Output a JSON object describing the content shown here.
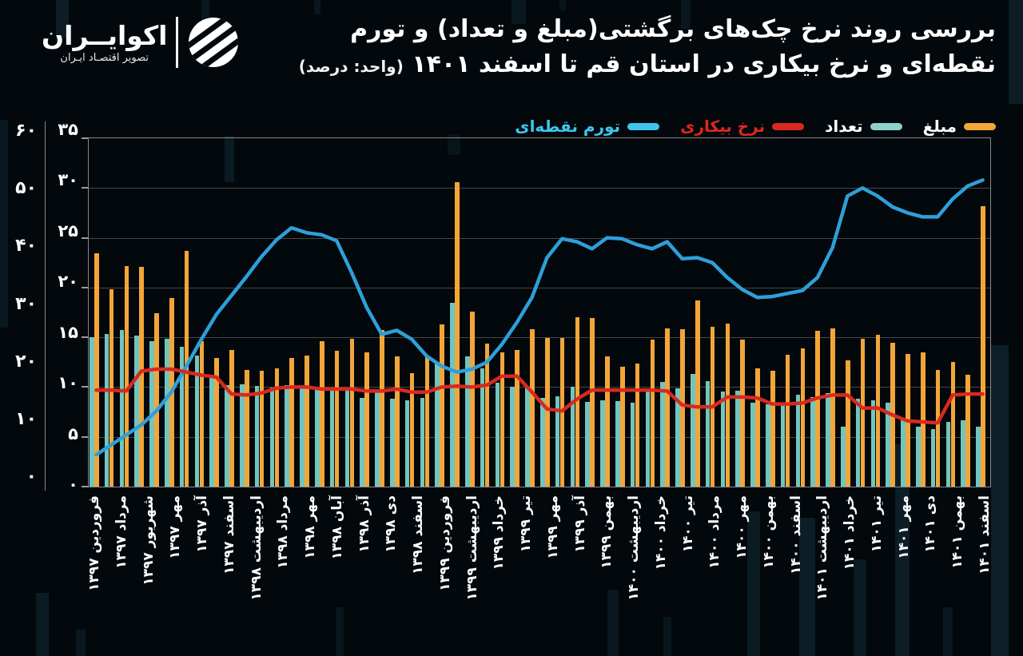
{
  "header": {
    "logo_name": "اکوایــران",
    "logo_tagline": "تصویر اقتصـاد ایـران",
    "title_line1": "بررسی روند نرخ چک‌های برگشتی(مبلغ و تعداد) و تورم",
    "title_line2": "نقطه‌ای و نرخ بیکاری در استان قم تا اسفند ۱۴۰۱",
    "title_unit": "(واحد: درصد)"
  },
  "legend": [
    {
      "label": "مبلغ",
      "swatch_color": "#F2A63A",
      "text_color": "#ffffff"
    },
    {
      "label": "تعداد",
      "swatch_color": "#8ED1CC",
      "text_color": "#ffffff"
    },
    {
      "label": "نرخ بیکاری",
      "swatch_color": "#D9291F",
      "text_color": "#E0271C"
    },
    {
      "label": "تورم نقطه‌ای",
      "swatch_color": "#3EC6EC",
      "text_color": "#3EC6EC"
    }
  ],
  "chart_data": {
    "type": "combo-bar-line",
    "n_points": 60,
    "grid": true,
    "legend_position": "top-right",
    "y_axis_bars": {
      "side": "outer-left",
      "min": 0,
      "max": 60,
      "tick_labels": [
        "۶۰",
        "۵۰",
        "۴۰",
        "۳۰",
        "۲۰",
        "۱۰",
        "۰"
      ]
    },
    "y_axis_lines": {
      "side": "inner-left",
      "min": 0,
      "max": 35,
      "tick_labels": [
        "۳۵",
        "۳۰",
        "۲۵",
        "۲۰",
        "۱۵",
        "۱۰",
        "۵",
        "۰"
      ]
    },
    "x_tick_labels": [
      "فروردین ۱۳۹۷",
      "مرداد ۱۳۹۷",
      "شهریور ۱۳۹۷",
      "مهر ۱۳۹۷",
      "آذر ۱۳۹۷",
      "اسفند ۱۳۹۷",
      "اردیبهشت ۱۳۹۸",
      "مرداد ۱۳۹۸",
      "مهر ۱۳۹۸",
      "آبان ۱۳۹۸",
      "آذر ۱۳۹۸",
      "دی ۱۳۹۸",
      "اسفند ۱۳۹۸",
      "فروردین ۱۳۹۹",
      "اردیبهشت ۱۳۹۹",
      "خرداد ۱۳۹۹",
      "تیر ۱۳۹۹",
      "مهر ۱۳۹۹",
      "آذر ۱۳۹۹",
      "بهمن ۱۳۹۹",
      "اردیبهشت ۱۴۰۰",
      "خرداد ۱۴۰۰",
      "تیر ۱۴۰۰",
      "مرداد ۱۴۰۰",
      "مهر ۱۴۰۰",
      "بهمن ۱۴۰۰",
      "اسفند ۱۴۰۰",
      "اردیبهشت ۱۴۰۱",
      "خرداد ۱۴۰۱",
      "تیر ۱۴۰۱",
      "مهر ۱۴۰۱",
      "دی ۱۴۰۱",
      "بهمن ۱۴۰۱",
      "اسفند ۱۴۰۱"
    ],
    "series": [
      {
        "name": "مبلغ",
        "type": "bar",
        "axis": "bars",
        "color": "#F2A63A",
        "values": [
          39.6,
          33.5,
          37.4,
          37.3,
          29.4,
          32.0,
          39.9,
          24.6,
          21.8,
          23.2,
          19.8,
          19.6,
          20.0,
          21.8,
          22.2,
          24.7,
          23.1,
          25.0,
          22.8,
          26.6,
          22.1,
          19.2,
          22.1,
          27.5,
          51.6,
          29.7,
          24.2,
          22.8,
          23.2,
          26.7,
          25.2,
          25.2,
          28.7,
          28.6,
          22.1,
          20.3,
          20.9,
          24.9,
          26.8,
          26.7,
          31.5,
          27.1,
          27.7,
          24.9,
          20.0,
          19.6,
          22.3,
          23.4,
          26.4,
          26.8,
          21.4,
          25.0,
          25.7,
          24.4,
          22.5,
          22.8,
          19.8,
          21.2,
          19.0,
          47.6
        ]
      },
      {
        "name": "تعداد",
        "type": "bar",
        "axis": "bars",
        "color": "#72C5BE",
        "values": [
          25.4,
          25.9,
          26.6,
          25.6,
          24.6,
          25.0,
          23.7,
          22.2,
          18.5,
          17.2,
          17.3,
          17.1,
          16.8,
          17.2,
          16.9,
          16.7,
          16.4,
          16.2,
          15.0,
          16.3,
          14.9,
          14.6,
          15.1,
          21.0,
          31.2,
          22.1,
          20.0,
          17.6,
          17.0,
          16.9,
          15.1,
          15.3,
          17.0,
          14.4,
          14.6,
          14.5,
          14.2,
          16.3,
          17.7,
          16.7,
          19.1,
          17.9,
          16.1,
          16.3,
          14.2,
          14.0,
          14.2,
          15.6,
          15.2,
          15.8,
          10.2,
          14.9,
          14.6,
          14.2,
          11.6,
          10.2,
          9.8,
          11.0,
          11.2,
          10.2
        ]
      },
      {
        "name": "نرخ بیکاری",
        "type": "line",
        "axis": "lines",
        "color": "#D9291F",
        "values": [
          9.7,
          9.7,
          9.6,
          11.6,
          11.8,
          11.8,
          11.5,
          11.2,
          11.0,
          9.3,
          9.2,
          9.4,
          9.9,
          10.0,
          10.0,
          9.8,
          9.8,
          9.8,
          9.6,
          9.6,
          9.8,
          9.5,
          9.5,
          10.0,
          10.1,
          10.0,
          10.2,
          11.1,
          11.1,
          9.5,
          7.8,
          7.6,
          8.8,
          9.7,
          9.7,
          9.7,
          9.7,
          9.7,
          9.6,
          8.2,
          8.0,
          8.0,
          9.0,
          9.0,
          8.9,
          8.3,
          8.3,
          8.4,
          8.9,
          9.2,
          9.2,
          7.9,
          7.9,
          7.2,
          6.6,
          6.5,
          6.4,
          9.2,
          9.3,
          9.3
        ]
      },
      {
        "name": "تورم نقطه‌ای",
        "type": "line",
        "axis": "lines",
        "color": "#2E9FD9",
        "values": [
          3.2,
          4.2,
          5.2,
          6.2,
          7.6,
          9.5,
          12.1,
          14.8,
          17.3,
          19.2,
          21.1,
          23.1,
          24.8,
          26.0,
          25.5,
          25.3,
          24.7,
          21.5,
          18.0,
          15.3,
          15.7,
          14.8,
          13.1,
          12.1,
          11.5,
          11.8,
          12.5,
          14.3,
          16.5,
          19.0,
          23.0,
          24.9,
          24.6,
          23.9,
          25.0,
          24.9,
          24.3,
          23.9,
          24.6,
          22.9,
          23.0,
          22.5,
          21.0,
          19.8,
          19.0,
          19.1,
          19.4,
          19.7,
          21.0,
          24.0,
          29.2,
          30.0,
          29.2,
          28.1,
          27.5,
          27.1,
          27.1,
          28.9,
          30.2,
          30.8
        ]
      }
    ]
  }
}
